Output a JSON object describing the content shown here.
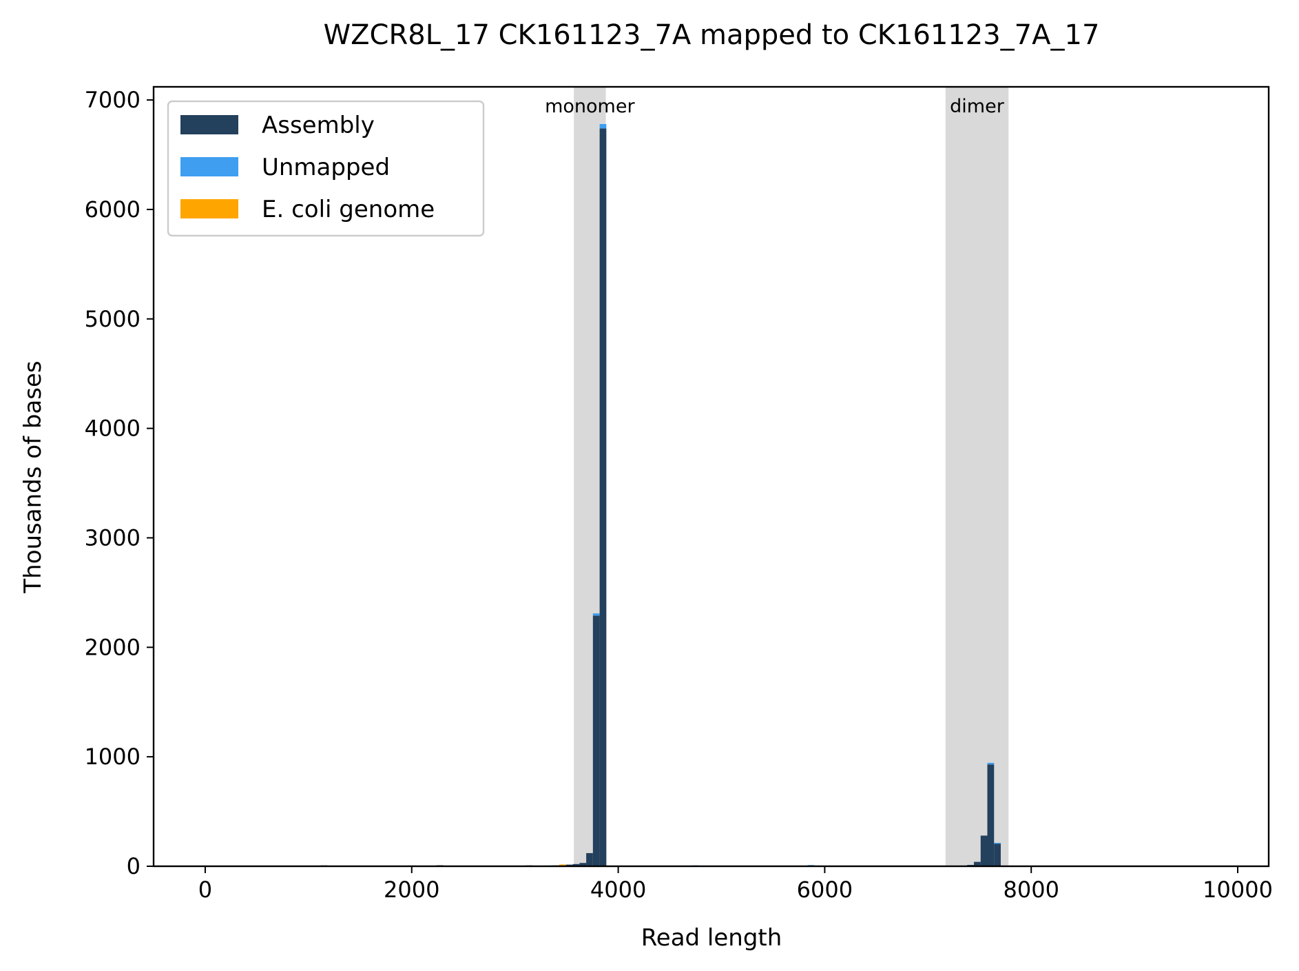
{
  "chart_data": {
    "type": "bar",
    "title": "WZCR8L_17 CK161123_7A mapped to CK161123_7A_17",
    "xlabel": "Read length",
    "ylabel": "Thousands of bases",
    "xlim": [
      -500,
      10300
    ],
    "ylim": [
      0,
      7120
    ],
    "xticks": [
      0,
      2000,
      4000,
      6000,
      8000,
      10000
    ],
    "xtick_labels": [
      "0",
      "2000",
      "4000",
      "6000",
      "8000",
      "10000"
    ],
    "yticks": [
      0,
      1000,
      2000,
      3000,
      4000,
      5000,
      6000,
      7000
    ],
    "ytick_labels": [
      "0",
      "1000",
      "2000",
      "3000",
      "4000",
      "5000",
      "6000",
      "7000"
    ],
    "bin_width": 65,
    "grid": false,
    "legend": {
      "placement": "top-left"
    },
    "shaded_regions": [
      {
        "label": "monomer",
        "x_start": 3570,
        "x_end": 3880
      },
      {
        "label": "dimer",
        "x_start": 7170,
        "x_end": 7780
      }
    ],
    "series": [
      {
        "name": "Assembly",
        "color": "#23405c",
        "points": [
          {
            "x": 1120,
            "y": 8
          },
          {
            "x": 1185,
            "y": 6
          },
          {
            "x": 1640,
            "y": 5
          },
          {
            "x": 1710,
            "y": 6
          },
          {
            "x": 1900,
            "y": 5
          },
          {
            "x": 1965,
            "y": 7
          },
          {
            "x": 2030,
            "y": 5
          },
          {
            "x": 2240,
            "y": 9
          },
          {
            "x": 2720,
            "y": 5
          },
          {
            "x": 2785,
            "y": 6
          },
          {
            "x": 3040,
            "y": 5
          },
          {
            "x": 3105,
            "y": 8
          },
          {
            "x": 3170,
            "y": 5
          },
          {
            "x": 3235,
            "y": 6
          },
          {
            "x": 3300,
            "y": 7
          },
          {
            "x": 3365,
            "y": 8
          },
          {
            "x": 3430,
            "y": 12
          },
          {
            "x": 3495,
            "y": 15
          },
          {
            "x": 3560,
            "y": 20
          },
          {
            "x": 3625,
            "y": 30
          },
          {
            "x": 3690,
            "y": 120
          },
          {
            "x": 3755,
            "y": 2290
          },
          {
            "x": 3820,
            "y": 6740
          },
          {
            "x": 5600,
            "y": 5
          },
          {
            "x": 5770,
            "y": 6
          },
          {
            "x": 5835,
            "y": 5
          },
          {
            "x": 6880,
            "y": 6
          },
          {
            "x": 7380,
            "y": 12
          },
          {
            "x": 7445,
            "y": 40
          },
          {
            "x": 7510,
            "y": 280
          },
          {
            "x": 7575,
            "y": 930
          },
          {
            "x": 7640,
            "y": 210
          }
        ]
      },
      {
        "name": "Unmapped",
        "color": "#3f9ef0",
        "points": [
          {
            "x": 3755,
            "y": 20
          },
          {
            "x": 3820,
            "y": 40
          },
          {
            "x": 4710,
            "y": 8
          },
          {
            "x": 5835,
            "y": 6
          },
          {
            "x": 7575,
            "y": 15
          },
          {
            "x": 7640,
            "y": 4
          }
        ]
      },
      {
        "name": "E. coli genome",
        "color": "#ffa500",
        "points": [
          {
            "x": 2850,
            "y": 6
          },
          {
            "x": 3430,
            "y": 4
          }
        ]
      }
    ]
  }
}
